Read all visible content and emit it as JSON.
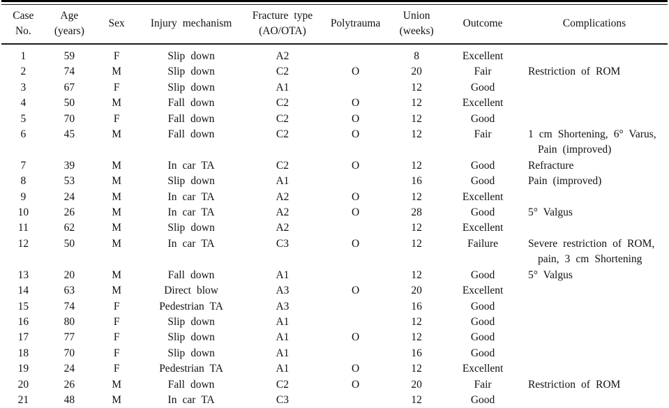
{
  "table": {
    "columns": [
      {
        "key": "case",
        "label": "Case\nNo."
      },
      {
        "key": "age",
        "label": "Age\n(years)"
      },
      {
        "key": "sex",
        "label": "Sex"
      },
      {
        "key": "mechanism",
        "label": "Injury mechanism"
      },
      {
        "key": "fracture",
        "label": "Fracture type\n(AO/OTA)"
      },
      {
        "key": "polytrauma",
        "label": "Polytrauma"
      },
      {
        "key": "union",
        "label": "Union\n(weeks)"
      },
      {
        "key": "outcome",
        "label": "Outcome"
      },
      {
        "key": "complications",
        "label": "Complications"
      }
    ],
    "rows": [
      {
        "case": "1",
        "age": "59",
        "sex": "F",
        "mechanism": "Slip down",
        "fracture": "A2",
        "polytrauma": "",
        "union": "8",
        "outcome": "Excellent",
        "complications": ""
      },
      {
        "case": "2",
        "age": "74",
        "sex": "M",
        "mechanism": "Slip down",
        "fracture": "C2",
        "polytrauma": "O",
        "union": "20",
        "outcome": "Fair",
        "complications": "Restriction of ROM"
      },
      {
        "case": "3",
        "age": "67",
        "sex": "F",
        "mechanism": "Slip down",
        "fracture": "A1",
        "polytrauma": "",
        "union": "12",
        "outcome": "Good",
        "complications": ""
      },
      {
        "case": "4",
        "age": "50",
        "sex": "M",
        "mechanism": "Fall down",
        "fracture": "C2",
        "polytrauma": "O",
        "union": "12",
        "outcome": "Excellent",
        "complications": ""
      },
      {
        "case": "5",
        "age": "70",
        "sex": "F",
        "mechanism": "Fall down",
        "fracture": "C2",
        "polytrauma": "O",
        "union": "12",
        "outcome": "Good",
        "complications": ""
      },
      {
        "case": "6",
        "age": "45",
        "sex": "M",
        "mechanism": "Fall down",
        "fracture": "C2",
        "polytrauma": "O",
        "union": "12",
        "outcome": "Fair",
        "complications": "1 cm Shortening, 6° Varus, Pain (improved)"
      },
      {
        "case": "7",
        "age": "39",
        "sex": "M",
        "mechanism": "In car TA",
        "fracture": "C2",
        "polytrauma": "O",
        "union": "12",
        "outcome": "Good",
        "complications": "Refracture"
      },
      {
        "case": "8",
        "age": "53",
        "sex": "M",
        "mechanism": "Slip down",
        "fracture": "A1",
        "polytrauma": "",
        "union": "16",
        "outcome": "Good",
        "complications": "Pain (improved)"
      },
      {
        "case": "9",
        "age": "24",
        "sex": "M",
        "mechanism": "In car TA",
        "fracture": "A2",
        "polytrauma": "O",
        "union": "12",
        "outcome": "Excellent",
        "complications": ""
      },
      {
        "case": "10",
        "age": "26",
        "sex": "M",
        "mechanism": "In car TA",
        "fracture": "A2",
        "polytrauma": "O",
        "union": "28",
        "outcome": "Good",
        "complications": "5° Valgus"
      },
      {
        "case": "11",
        "age": "62",
        "sex": "M",
        "mechanism": "Slip down",
        "fracture": "A2",
        "polytrauma": "",
        "union": "12",
        "outcome": "Excellent",
        "complications": ""
      },
      {
        "case": "12",
        "age": "50",
        "sex": "M",
        "mechanism": "In car TA",
        "fracture": "C3",
        "polytrauma": "O",
        "union": "12",
        "outcome": "Failure",
        "complications": "Severe restriction of ROM, pain, 3 cm Shortening"
      },
      {
        "case": "13",
        "age": "20",
        "sex": "M",
        "mechanism": "Fall down",
        "fracture": "A1",
        "polytrauma": "",
        "union": "12",
        "outcome": "Good",
        "complications": "5° Valgus"
      },
      {
        "case": "14",
        "age": "63",
        "sex": "M",
        "mechanism": "Direct blow",
        "fracture": "A3",
        "polytrauma": "O",
        "union": "20",
        "outcome": "Excellent",
        "complications": ""
      },
      {
        "case": "15",
        "age": "74",
        "sex": "F",
        "mechanism": "Pedestrian TA",
        "fracture": "A3",
        "polytrauma": "",
        "union": "16",
        "outcome": "Good",
        "complications": ""
      },
      {
        "case": "16",
        "age": "80",
        "sex": "F",
        "mechanism": "Slip down",
        "fracture": "A1",
        "polytrauma": "",
        "union": "12",
        "outcome": "Good",
        "complications": ""
      },
      {
        "case": "17",
        "age": "77",
        "sex": "F",
        "mechanism": "Slip down",
        "fracture": "A1",
        "polytrauma": "O",
        "union": "12",
        "outcome": "Good",
        "complications": ""
      },
      {
        "case": "18",
        "age": "70",
        "sex": "F",
        "mechanism": "Slip down",
        "fracture": "A1",
        "polytrauma": "",
        "union": "16",
        "outcome": "Good",
        "complications": ""
      },
      {
        "case": "19",
        "age": "24",
        "sex": "F",
        "mechanism": "Pedestrian TA",
        "fracture": "A1",
        "polytrauma": "O",
        "union": "12",
        "outcome": "Excellent",
        "complications": ""
      },
      {
        "case": "20",
        "age": "26",
        "sex": "M",
        "mechanism": "Fall down",
        "fracture": "C2",
        "polytrauma": "O",
        "union": "20",
        "outcome": "Fair",
        "complications": "Restriction of ROM"
      },
      {
        "case": "21",
        "age": "48",
        "sex": "M",
        "mechanism": "In car TA",
        "fracture": "C3",
        "polytrauma": "",
        "union": "12",
        "outcome": "Good",
        "complications": ""
      }
    ]
  }
}
